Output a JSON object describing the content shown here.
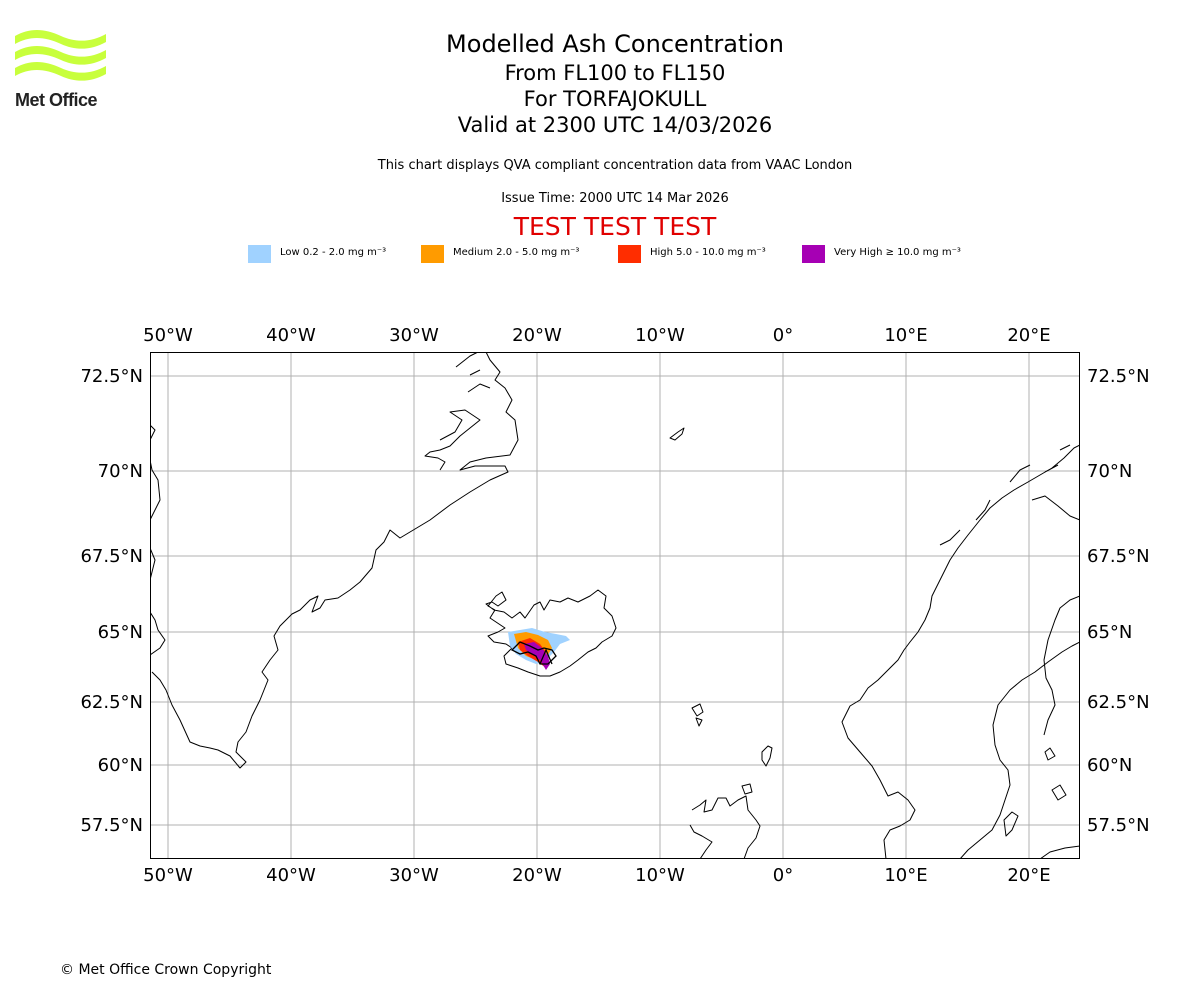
{
  "logo": {
    "text": "Met Office",
    "color": "#c8ff3c"
  },
  "title": {
    "main": "Modelled Ash Concentration",
    "range": "From FL100 to FL150",
    "volcano": "For TORFAJOKULL",
    "valid": "Valid at 2300 UTC 14/03/2026"
  },
  "subtitle": "This chart displays QVA compliant concentration data from VAAC London",
  "issue_time": "Issue Time: 2000 UTC 14 Mar 2026",
  "test_banner": "TEST TEST TEST",
  "legend": [
    {
      "label": "Low 0.2 - 2.0 mg m⁻³",
      "color": "#a0d2ff"
    },
    {
      "label": "Medium 2.0 - 5.0 mg m⁻³",
      "color": "#ff9b00"
    },
    {
      "label": "High 5.0 - 10.0 mg m⁻³",
      "color": "#ff2d00"
    },
    {
      "label": "Very High ≥ 10.0 mg m⁻³",
      "color": "#a600b4"
    }
  ],
  "map": {
    "lon_ticks": [
      "50°W",
      "40°W",
      "30°W",
      "20°W",
      "10°W",
      "0°",
      "10°E",
      "20°E"
    ],
    "lat_ticks": [
      "72.5°N",
      "70°N",
      "67.5°N",
      "65°N",
      "62.5°N",
      "60°N",
      "57.5°N"
    ],
    "gridline_color": "#b0b0b0"
  },
  "copyright": "© Met Office Crown Copyright"
}
